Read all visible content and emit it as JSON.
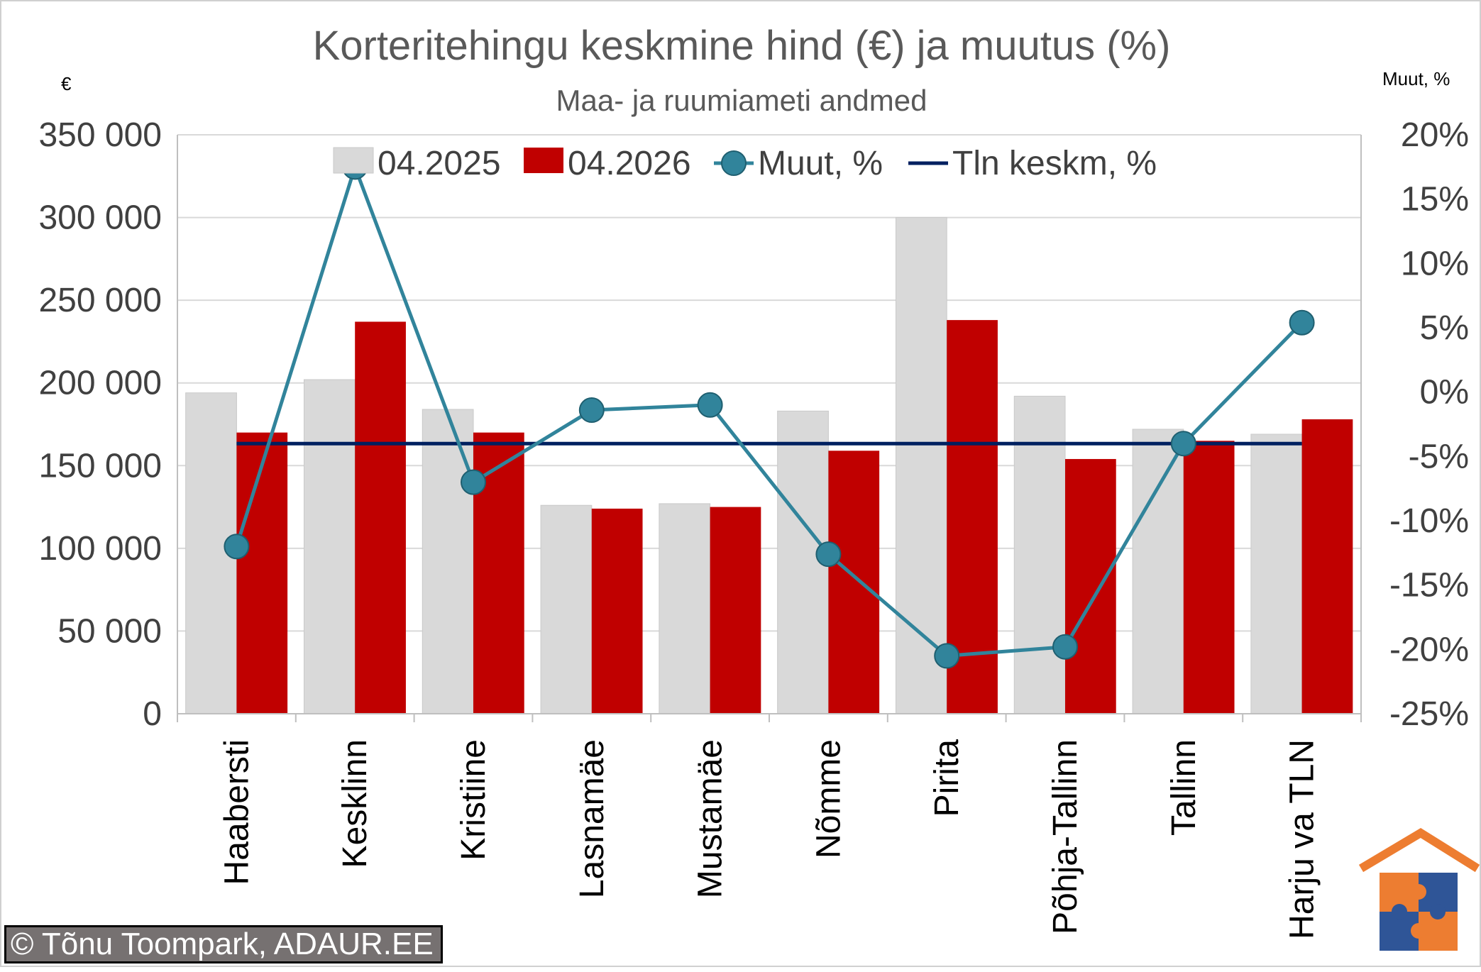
{
  "chart_data": {
    "type": "bar",
    "title": "Korteritehingu keskmine hind (€) ja muutus (%)",
    "subtitle": "Maa- ja ruumiameti andmed",
    "ylabel_left": "€",
    "ylabel_right": "Muut, %",
    "categories": [
      "Haabersti",
      "Kesklinn",
      "Kristiine",
      "Lasnamäe",
      "Mustamäe",
      "Nõmme",
      "Pirita",
      "Põhja-Tallinn",
      "Tallinn",
      "Harju va TLN"
    ],
    "series": [
      {
        "name": "04.2025",
        "kind": "bar",
        "axis": "left",
        "color": "#d9d9d9",
        "values": [
          194000,
          202000,
          184000,
          126000,
          127000,
          183000,
          300000,
          192000,
          172000,
          169000
        ]
      },
      {
        "name": "04.2026",
        "kind": "bar",
        "axis": "left",
        "color": "#c00000",
        "values": [
          170000,
          237000,
          170000,
          124000,
          125000,
          159000,
          238000,
          154000,
          165000,
          178000
        ]
      },
      {
        "name": "Muut, %",
        "kind": "line-marker",
        "axis": "right",
        "color": "#31849b",
        "values": [
          -12.0,
          17.5,
          -7.0,
          -1.4,
          -1.0,
          -12.6,
          -20.5,
          -19.8,
          -4.0,
          5.4
        ]
      },
      {
        "name": "Tln keskm, %",
        "kind": "line",
        "axis": "right",
        "color": "#002060",
        "values": [
          -4.0,
          -4.0,
          -4.0,
          -4.0,
          -4.0,
          -4.0,
          -4.0,
          -4.0,
          -4.0,
          -4.0
        ]
      }
    ],
    "ylim_left": [
      0,
      350000
    ],
    "yticks_left": [
      0,
      50000,
      100000,
      150000,
      200000,
      250000,
      300000,
      350000
    ],
    "yticklabels_left": [
      "0",
      "50 000",
      "100 000",
      "150 000",
      "200 000",
      "250 000",
      "300 000",
      "350 000"
    ],
    "ylim_right": [
      -25,
      20
    ],
    "yticks_right": [
      -25,
      -20,
      -15,
      -10,
      -5,
      0,
      5,
      10,
      15,
      20
    ],
    "yticklabels_right": [
      "-25%",
      "-20%",
      "-15%",
      "-10%",
      "-5%",
      "0%",
      "5%",
      "10%",
      "15%",
      "20%"
    ],
    "grid": "horizontal",
    "legend": "top"
  },
  "footer": {
    "copyright": "© Tõnu Toompark, ADAUR.EE"
  }
}
